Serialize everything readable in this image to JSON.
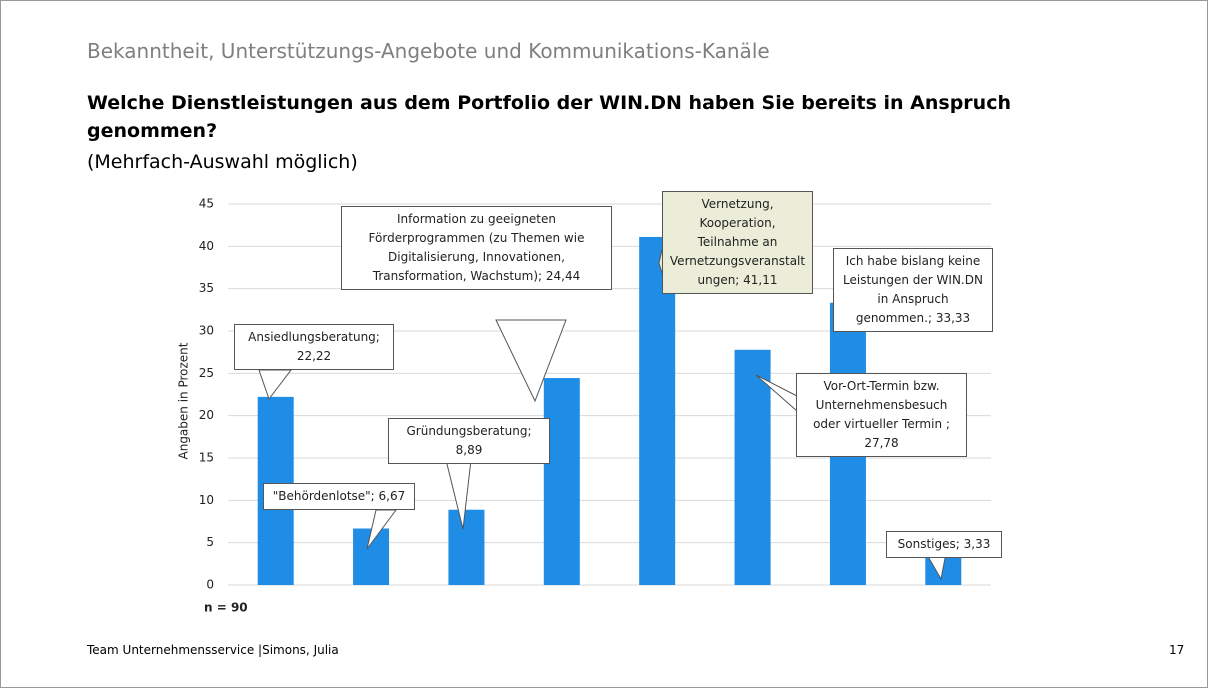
{
  "header": "Bekanntheit, Unterstützungs-Angebote und Kommunikations-Kanäle",
  "footer": "Team Unternehmensservice |Simons, Julia",
  "page_number": 17,
  "chart_data": {
    "type": "bar",
    "title": "Welche Dienstleistungen aus dem Portfolio der WIN.DN haben Sie bereits in Anspruch genommen?",
    "subtitle": "(Mehrfach-Auswahl möglich)",
    "y_label": "Angaben in Prozent",
    "annotation": "n = 90",
    "categories": [
      null,
      null,
      null,
      null,
      null,
      null,
      null,
      null
    ],
    "values": [
      22.22,
      6.67,
      8.89,
      24.44,
      41.11,
      27.78,
      33.33,
      3.33
    ],
    "value_labels": [
      "Ansiedlungsberatung; 22,22",
      "\"Behördenlotse\"; 6,67",
      "Gründungsberatung; 8,89",
      "Information zu geeigneten Förderprogrammen (zu Themen wie Digitalisierung, Innovationen, Transformation, Wachstum); 24,44",
      "Vernetzung, Kooperation, Teilnahme an Vernetzungsveranstaltungen; 41,11",
      "Vor-Ort-Termin bzw. Unternehmensbesuch oder virtueller Termin ; 27,78",
      "Ich habe bislang keine Leistungen der WIN.DN in Anspruch genommen.; 33,33",
      "Sonstiges; 3,33"
    ],
    "color": "#1f8ce6",
    "ylim": [
      0,
      45
    ],
    "yticks": [
      0,
      5,
      10,
      15,
      20,
      25,
      30,
      35,
      40,
      45
    ],
    "grid": true
  }
}
